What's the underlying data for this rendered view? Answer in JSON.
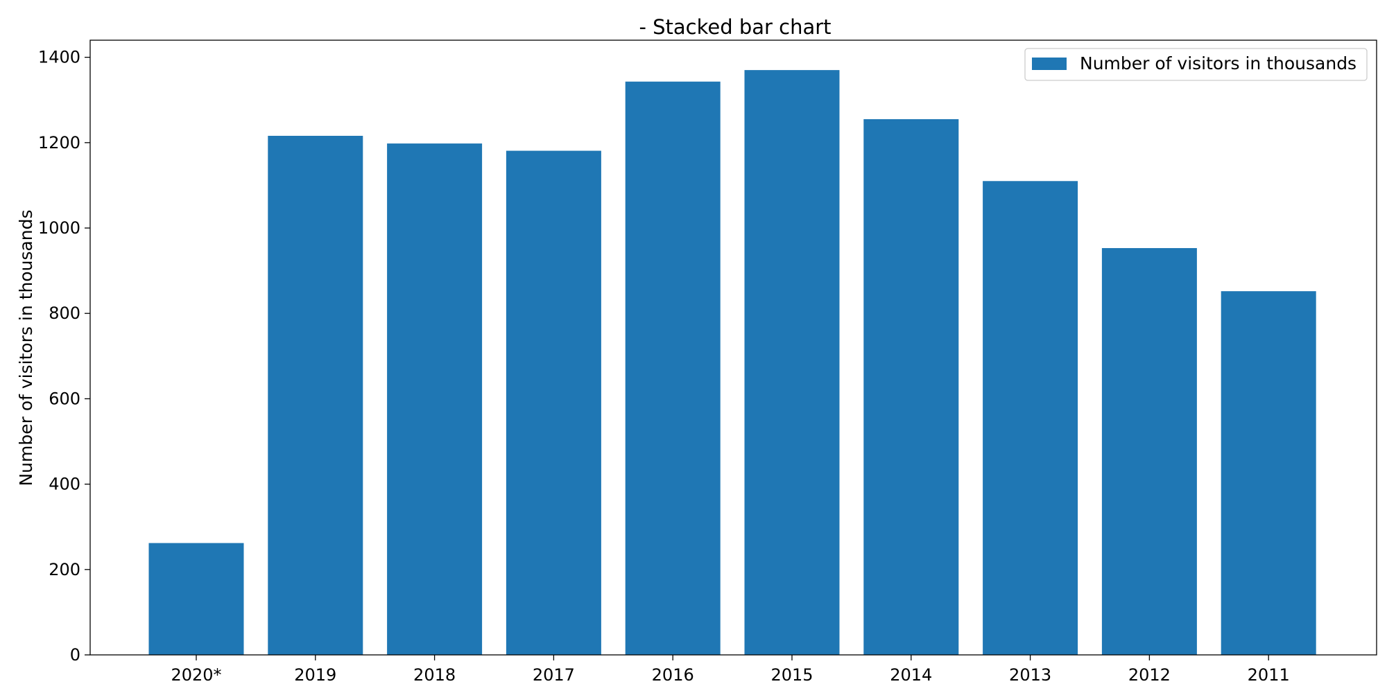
{
  "chart_data": {
    "type": "bar",
    "title": "- Stacked bar chart",
    "xlabel": "",
    "ylabel": "Number of visitors in thousands",
    "categories": [
      "2020*",
      "2019",
      "2018",
      "2017",
      "2016",
      "2015",
      "2014",
      "2013",
      "2012",
      "2011"
    ],
    "series": [
      {
        "name": "Number of visitors in thousands",
        "values": [
          262,
          1216,
          1198,
          1181,
          1343,
          1370,
          1255,
          1110,
          953,
          852
        ],
        "color": "#1f77b4"
      }
    ],
    "ylim": [
      0,
      1440
    ],
    "yticks": [
      0,
      200,
      400,
      600,
      800,
      1000,
      1200,
      1400
    ],
    "grid": false,
    "legend_position": "top-right"
  }
}
